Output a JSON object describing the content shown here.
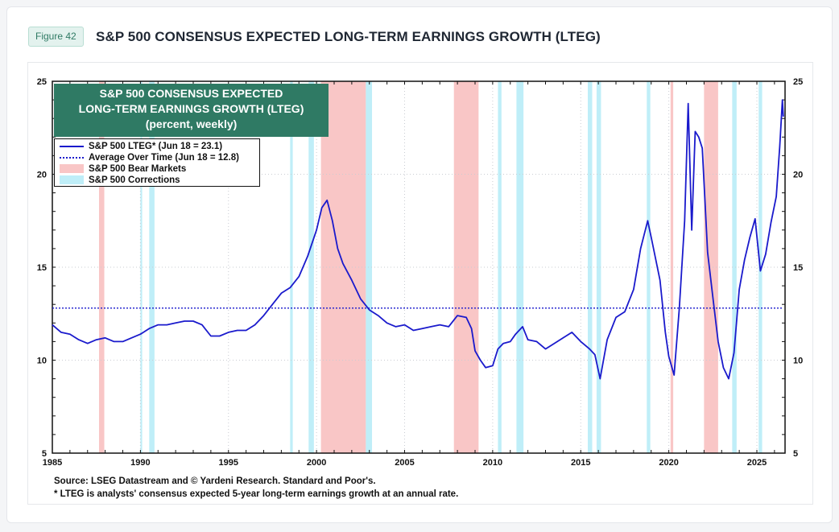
{
  "header": {
    "figure_label": "Figure 42",
    "title": "S&P 500 CONSENSUS EXPECTED LONG-TERM EARNINGS GROWTH (LTEG)"
  },
  "chart_box": {
    "line1": "S&P 500 CONSENSUS EXPECTED",
    "line2": "LONG-TERM EARNINGS GROWTH (LTEG)",
    "line3": "(percent, weekly)"
  },
  "legend": {
    "lteg": "S&P 500 LTEG* (Jun 18 = 23.1)",
    "average": "Average Over Time (Jun 18 = 12.8)",
    "bear": "S&P 500 Bear Markets",
    "corrections": "S&P 500 Corrections"
  },
  "notes": {
    "source": "Source: LSEG Datastream and © Yardeni Research. Standard and Poor's.",
    "footnote": "* LTEG is analysts' consensus expected 5-year long-term earnings growth at an annual rate."
  },
  "colors": {
    "line": "#1a1acc",
    "average": "#1a1acc",
    "bear": "#f9c6c6",
    "correction": "#bfeef8",
    "box": "#2f7a64"
  },
  "chart_data": {
    "type": "line",
    "xlim": [
      1985,
      2026.6
    ],
    "ylim": [
      5,
      25
    ],
    "x_ticks": [
      1985,
      1990,
      1995,
      2000,
      2005,
      2010,
      2015,
      2020,
      2025
    ],
    "y_ticks_left": [
      5,
      10,
      15,
      20,
      25
    ],
    "y_ticks_right": [
      5,
      10,
      15,
      20,
      25
    ],
    "average": 12.8,
    "bear_markets": [
      [
        1987.65,
        1987.95
      ],
      [
        2000.25,
        2002.8
      ],
      [
        2007.8,
        2009.2
      ],
      [
        2020.1,
        2020.25
      ],
      [
        2022.0,
        2022.8
      ]
    ],
    "corrections": [
      [
        1990.0,
        1990.1
      ],
      [
        1990.5,
        1990.8
      ],
      [
        1998.5,
        1998.65
      ],
      [
        1999.55,
        1999.85
      ],
      [
        2002.8,
        2003.15
      ],
      [
        2010.3,
        2010.5
      ],
      [
        2011.35,
        2011.75
      ],
      [
        2015.4,
        2015.65
      ],
      [
        2015.9,
        2016.15
      ],
      [
        2018.75,
        2018.95
      ],
      [
        2023.6,
        2023.85
      ],
      [
        2025.1,
        2025.3
      ]
    ],
    "series": [
      {
        "name": "S&P 500 LTEG* (Jun 18 = 23.1)",
        "points": [
          [
            1985.0,
            11.9
          ],
          [
            1985.5,
            11.5
          ],
          [
            1986.0,
            11.4
          ],
          [
            1986.5,
            11.1
          ],
          [
            1987.0,
            10.9
          ],
          [
            1987.5,
            11.1
          ],
          [
            1988.0,
            11.2
          ],
          [
            1988.5,
            11.0
          ],
          [
            1989.0,
            11.0
          ],
          [
            1989.5,
            11.2
          ],
          [
            1990.0,
            11.4
          ],
          [
            1990.5,
            11.7
          ],
          [
            1991.0,
            11.9
          ],
          [
            1991.5,
            11.9
          ],
          [
            1992.0,
            12.0
          ],
          [
            1992.5,
            12.1
          ],
          [
            1993.0,
            12.1
          ],
          [
            1993.5,
            11.9
          ],
          [
            1994.0,
            11.3
          ],
          [
            1994.5,
            11.3
          ],
          [
            1995.0,
            11.5
          ],
          [
            1995.5,
            11.6
          ],
          [
            1996.0,
            11.6
          ],
          [
            1996.5,
            11.9
          ],
          [
            1997.0,
            12.4
          ],
          [
            1997.5,
            13.0
          ],
          [
            1998.0,
            13.6
          ],
          [
            1998.5,
            13.9
          ],
          [
            1999.0,
            14.5
          ],
          [
            1999.5,
            15.6
          ],
          [
            2000.0,
            17.0
          ],
          [
            2000.3,
            18.2
          ],
          [
            2000.6,
            18.6
          ],
          [
            2000.9,
            17.5
          ],
          [
            2001.2,
            16.0
          ],
          [
            2001.5,
            15.2
          ],
          [
            2002.0,
            14.3
          ],
          [
            2002.5,
            13.3
          ],
          [
            2003.0,
            12.7
          ],
          [
            2003.5,
            12.4
          ],
          [
            2004.0,
            12.0
          ],
          [
            2004.5,
            11.8
          ],
          [
            2005.0,
            11.9
          ],
          [
            2005.5,
            11.6
          ],
          [
            2006.0,
            11.7
          ],
          [
            2006.5,
            11.8
          ],
          [
            2007.0,
            11.9
          ],
          [
            2007.5,
            11.8
          ],
          [
            2008.0,
            12.4
          ],
          [
            2008.5,
            12.3
          ],
          [
            2008.8,
            11.7
          ],
          [
            2009.0,
            10.5
          ],
          [
            2009.3,
            10.0
          ],
          [
            2009.6,
            9.6
          ],
          [
            2010.0,
            9.7
          ],
          [
            2010.3,
            10.6
          ],
          [
            2010.6,
            10.9
          ],
          [
            2011.0,
            11.0
          ],
          [
            2011.3,
            11.4
          ],
          [
            2011.7,
            11.8
          ],
          [
            2012.0,
            11.1
          ],
          [
            2012.5,
            11.0
          ],
          [
            2013.0,
            10.6
          ],
          [
            2013.5,
            10.9
          ],
          [
            2014.0,
            11.2
          ],
          [
            2014.5,
            11.5
          ],
          [
            2015.0,
            11.0
          ],
          [
            2015.5,
            10.6
          ],
          [
            2015.8,
            10.3
          ],
          [
            2016.1,
            9.0
          ],
          [
            2016.5,
            11.1
          ],
          [
            2017.0,
            12.3
          ],
          [
            2017.5,
            12.6
          ],
          [
            2018.0,
            13.8
          ],
          [
            2018.4,
            16.0
          ],
          [
            2018.8,
            17.5
          ],
          [
            2019.0,
            16.6
          ],
          [
            2019.5,
            14.3
          ],
          [
            2019.8,
            11.5
          ],
          [
            2020.0,
            10.2
          ],
          [
            2020.3,
            9.2
          ],
          [
            2020.6,
            12.8
          ],
          [
            2020.9,
            17.5
          ],
          [
            2021.1,
            23.8
          ],
          [
            2021.3,
            17.0
          ],
          [
            2021.5,
            22.3
          ],
          [
            2021.7,
            22.0
          ],
          [
            2021.9,
            21.4
          ],
          [
            2022.2,
            15.8
          ],
          [
            2022.5,
            13.4
          ],
          [
            2022.8,
            11.0
          ],
          [
            2023.1,
            9.6
          ],
          [
            2023.4,
            9.0
          ],
          [
            2023.7,
            10.4
          ],
          [
            2024.0,
            13.8
          ],
          [
            2024.3,
            15.4
          ],
          [
            2024.6,
            16.6
          ],
          [
            2024.9,
            17.6
          ],
          [
            2025.2,
            14.8
          ],
          [
            2025.5,
            15.7
          ],
          [
            2025.8,
            17.4
          ],
          [
            2026.1,
            18.8
          ],
          [
            2026.3,
            21.5
          ],
          [
            2026.45,
            24.0
          ],
          [
            2026.5,
            23.1
          ]
        ]
      },
      {
        "name": "Average Over Time (Jun 18 = 12.8)",
        "points": [
          [
            1985.0,
            12.8
          ],
          [
            2026.5,
            12.8
          ]
        ]
      }
    ]
  }
}
